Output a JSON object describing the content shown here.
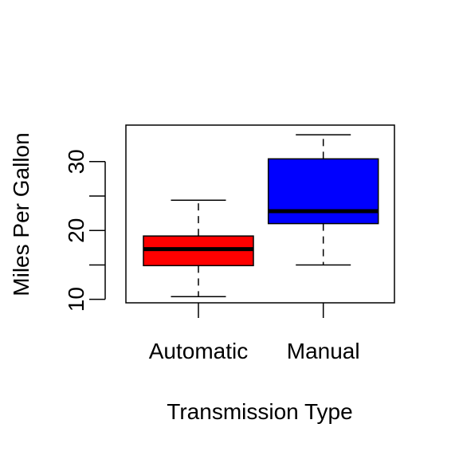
{
  "chart_data": {
    "type": "boxplot",
    "title": "",
    "xlabel": "Transmission Type",
    "ylabel": "Miles Per Gallon",
    "ylim": [
      9.5,
      35.3
    ],
    "yticks": [
      10,
      20,
      30
    ],
    "grid": false,
    "legend": "none",
    "categories": [
      "Automatic",
      "Manual"
    ],
    "boxes": [
      {
        "name": "Automatic",
        "color": "#ff0000",
        "min": 10.4,
        "q1": 14.9,
        "median": 17.3,
        "q3": 19.2,
        "max": 24.4
      },
      {
        "name": "Manual",
        "color": "#0000ff",
        "min": 15.0,
        "q1": 21.0,
        "median": 22.8,
        "q3": 30.4,
        "max": 33.9
      }
    ]
  }
}
